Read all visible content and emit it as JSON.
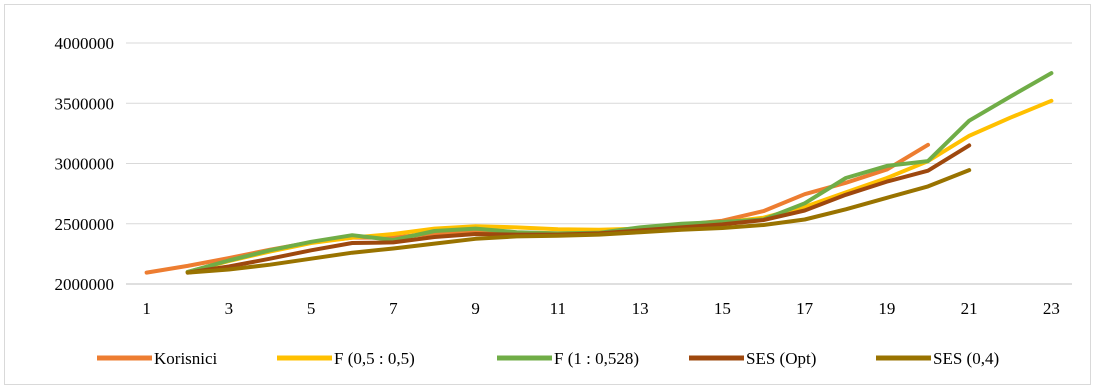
{
  "chart_data": {
    "type": "line",
    "title": "",
    "xlabel": "",
    "ylabel": "",
    "x": [
      1,
      2,
      3,
      4,
      5,
      6,
      7,
      8,
      9,
      10,
      11,
      12,
      13,
      14,
      15,
      16,
      17,
      18,
      19,
      20,
      21,
      22,
      23
    ],
    "x_tick_labels": [
      "1",
      "3",
      "5",
      "7",
      "9",
      "11",
      "13",
      "15",
      "17",
      "19",
      "21",
      "23"
    ],
    "x_tick_values": [
      1,
      3,
      5,
      7,
      9,
      11,
      13,
      15,
      17,
      19,
      21,
      23
    ],
    "ylim": [
      2000000,
      4000000
    ],
    "y_ticks": [
      2000000,
      2500000,
      3000000,
      3500000,
      4000000
    ],
    "y_tick_labels": [
      "2000000",
      "2500000",
      "3000000",
      "3500000",
      "4000000"
    ],
    "grid": true,
    "legend_position": "bottom",
    "series": [
      {
        "name": "Korisnici",
        "color": "#ED7D31",
        "points": [
          [
            1,
            2095000
          ],
          [
            2,
            2150000
          ],
          [
            3,
            2215000
          ],
          [
            4,
            2285000
          ],
          [
            5,
            2345000
          ],
          [
            6,
            2385000
          ],
          [
            7,
            2385000
          ],
          [
            8,
            2420000
          ],
          [
            9,
            2430000
          ],
          [
            10,
            2425000
          ],
          [
            11,
            2420000
          ],
          [
            12,
            2430000
          ],
          [
            13,
            2465000
          ],
          [
            14,
            2490000
          ],
          [
            15,
            2525000
          ],
          [
            16,
            2605000
          ],
          [
            17,
            2745000
          ],
          [
            18,
            2840000
          ],
          [
            19,
            2950000
          ],
          [
            20,
            3155000
          ]
        ]
      },
      {
        "name": "F (0,5 : 0,5)",
        "color": "#FFC000",
        "points": [
          [
            2,
            2100000
          ],
          [
            3,
            2190000
          ],
          [
            4,
            2270000
          ],
          [
            5,
            2340000
          ],
          [
            6,
            2385000
          ],
          [
            7,
            2415000
          ],
          [
            8,
            2460000
          ],
          [
            9,
            2480000
          ],
          [
            10,
            2470000
          ],
          [
            11,
            2455000
          ],
          [
            12,
            2450000
          ],
          [
            13,
            2460000
          ],
          [
            14,
            2485000
          ],
          [
            15,
            2510000
          ],
          [
            16,
            2550000
          ],
          [
            17,
            2640000
          ],
          [
            18,
            2760000
          ],
          [
            19,
            2880000
          ],
          [
            20,
            3020000
          ],
          [
            21,
            3230000
          ],
          [
            22,
            3380000
          ],
          [
            23,
            3520000
          ]
        ]
      },
      {
        "name": "F (1 : 0,528)",
        "color": "#70AD47",
        "points": [
          [
            2,
            2100000
          ],
          [
            3,
            2195000
          ],
          [
            4,
            2280000
          ],
          [
            5,
            2350000
          ],
          [
            6,
            2405000
          ],
          [
            7,
            2365000
          ],
          [
            8,
            2440000
          ],
          [
            9,
            2460000
          ],
          [
            10,
            2430000
          ],
          [
            11,
            2420000
          ],
          [
            12,
            2425000
          ],
          [
            13,
            2470000
          ],
          [
            14,
            2500000
          ],
          [
            15,
            2515000
          ],
          [
            16,
            2535000
          ],
          [
            17,
            2670000
          ],
          [
            18,
            2880000
          ],
          [
            19,
            2980000
          ],
          [
            20,
            3020000
          ],
          [
            21,
            3355000
          ],
          [
            22,
            3555000
          ],
          [
            23,
            3750000
          ]
        ]
      },
      {
        "name": "SES (Opt)",
        "color": "#9E480E",
        "points": [
          [
            2,
            2095000
          ],
          [
            3,
            2145000
          ],
          [
            4,
            2210000
          ],
          [
            5,
            2280000
          ],
          [
            6,
            2340000
          ],
          [
            7,
            2345000
          ],
          [
            8,
            2390000
          ],
          [
            9,
            2415000
          ],
          [
            10,
            2410000
          ],
          [
            11,
            2410000
          ],
          [
            12,
            2420000
          ],
          [
            13,
            2445000
          ],
          [
            14,
            2470000
          ],
          [
            15,
            2495000
          ],
          [
            16,
            2530000
          ],
          [
            17,
            2610000
          ],
          [
            18,
            2740000
          ],
          [
            19,
            2850000
          ],
          [
            20,
            2940000
          ],
          [
            21,
            3150000
          ]
        ]
      },
      {
        "name": "SES (0,4)",
        "color": "#997300",
        "points": [
          [
            2,
            2095000
          ],
          [
            3,
            2120000
          ],
          [
            4,
            2160000
          ],
          [
            5,
            2210000
          ],
          [
            6,
            2260000
          ],
          [
            7,
            2295000
          ],
          [
            8,
            2335000
          ],
          [
            9,
            2375000
          ],
          [
            10,
            2395000
          ],
          [
            11,
            2400000
          ],
          [
            12,
            2410000
          ],
          [
            13,
            2430000
          ],
          [
            14,
            2450000
          ],
          [
            15,
            2465000
          ],
          [
            16,
            2490000
          ],
          [
            17,
            2535000
          ],
          [
            18,
            2620000
          ],
          [
            19,
            2715000
          ],
          [
            20,
            2810000
          ],
          [
            21,
            2945000
          ]
        ]
      }
    ]
  }
}
